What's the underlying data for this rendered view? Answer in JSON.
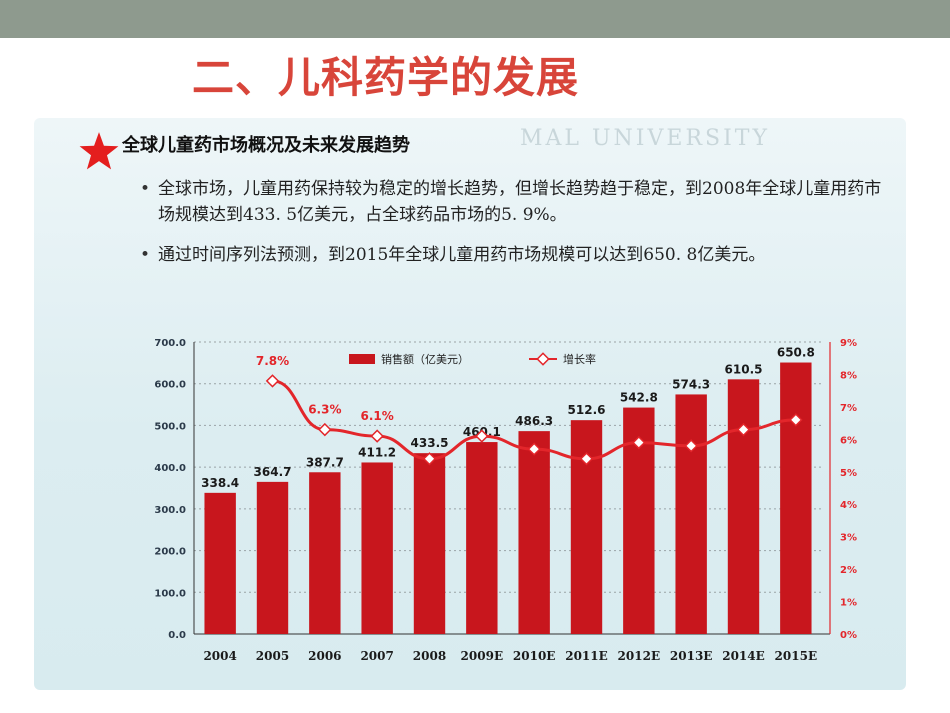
{
  "slide": {
    "title": "二、儿科药学的发展",
    "section_heading": "全球儿童药市场概况及未来发展趋势",
    "watermark": "MAL UNIVERSITY",
    "star_icon": "red-star",
    "bullets": [
      "全球市场，儿童用药保持较为稳定的增长趋势，但增长趋势趋于稳定，到2008年全球儿童用药市场规模达到433. 5亿美元，占全球药品市场的5. 9%。",
      "通过时间序列法预测，到2015年全球儿童用药市场规模可以达到650. 8亿美元。"
    ]
  },
  "chart_data": {
    "type": "bar",
    "categories": [
      "2004",
      "2005",
      "2006",
      "2007",
      "2008",
      "2009E",
      "2010E",
      "2011E",
      "2012E",
      "2013E",
      "2014E",
      "2015E"
    ],
    "series": [
      {
        "name": "销售额（亿美元）",
        "type": "bar",
        "axis": "left",
        "values": [
          338.4,
          364.7,
          387.7,
          411.2,
          433.5,
          460.1,
          486.3,
          512.6,
          542.8,
          574.3,
          610.5,
          650.8
        ],
        "labels": [
          "338.4",
          "364.7",
          "387.7",
          "411.2",
          "433.5",
          "460.1",
          "486.3",
          "512.6",
          "542.8",
          "574.3",
          "610.5",
          "650.8"
        ]
      },
      {
        "name": "增长率",
        "type": "line",
        "axis": "right",
        "values": [
          null,
          7.8,
          6.3,
          6.1,
          5.4,
          6.1,
          5.7,
          5.4,
          5.9,
          5.8,
          6.3,
          6.6
        ],
        "labels": [
          "",
          "7.8%",
          "6.3%",
          "6.1%",
          "",
          "",
          "",
          "",
          "",
          "",
          "",
          ""
        ]
      }
    ],
    "ylim_left": [
      0,
      700
    ],
    "yticks_left": [
      "0.0",
      "100.0",
      "200.0",
      "300.0",
      "400.0",
      "500.0",
      "600.0",
      "700.0"
    ],
    "ylim_right": [
      0,
      9
    ],
    "yticks_right": [
      "0%",
      "1%",
      "2%",
      "3%",
      "4%",
      "5%",
      "6%",
      "7%",
      "8%",
      "9%"
    ],
    "grid": true,
    "legend": "top-center",
    "colors": {
      "bar": "#c8161d",
      "line": "#e3262b",
      "right_axis": "#e3262b",
      "rate_label": "#e3262b"
    }
  }
}
